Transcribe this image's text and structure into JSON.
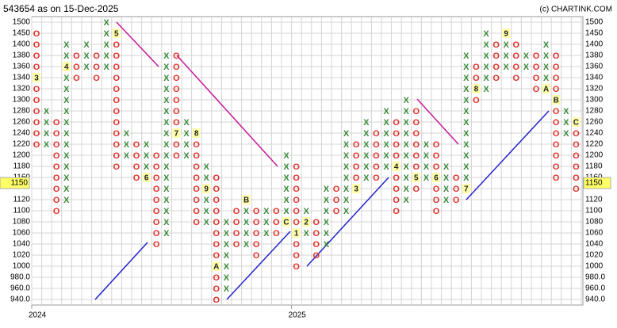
{
  "chart_data": {
    "type": "point-and-figure",
    "title": "543654 as on 15-Dec-2025",
    "credit": "(c) CHARTINK.COM",
    "last_price": {
      "value": 1150,
      "label": "1150"
    },
    "x_color": "#3a8a3a",
    "o_color": "#e0302a",
    "grid": true,
    "yticks": [
      1500,
      1450,
      1400,
      1380,
      1360,
      1340,
      1320,
      1300,
      1280,
      1260,
      1240,
      1220,
      1200,
      1180,
      1160,
      {
        "value": 1140,
        "label": null
      },
      1120,
      1100,
      1080,
      1060,
      1040,
      1020,
      1000,
      {
        "value": 980,
        "label": "980.0"
      },
      {
        "value": 960,
        "label": "960.0"
      },
      {
        "value": 940,
        "label": "940.0"
      }
    ],
    "years": [
      {
        "label": "2024",
        "column": 0
      },
      {
        "label": "2025",
        "column": 26
      }
    ],
    "columns": [
      {
        "kind": "O",
        "high": 1450,
        "low": 1220,
        "markers": [
          {
            "price": 1340,
            "label": "3"
          }
        ]
      },
      {
        "kind": "X",
        "high": 1280,
        "low": 1220
      },
      {
        "kind": "O",
        "high": 1260,
        "low": 1100
      },
      {
        "kind": "X",
        "high": 1400,
        "low": 1120,
        "markers": [
          {
            "price": 1360,
            "label": "4"
          }
        ]
      },
      {
        "kind": "O",
        "high": 1380,
        "low": 1340
      },
      {
        "kind": "X",
        "high": 1400,
        "low": 1360
      },
      {
        "kind": "O",
        "high": 1380,
        "low": 1340
      },
      {
        "kind": "X",
        "high": 1500,
        "low": 1360
      },
      {
        "kind": "O",
        "high": 1450,
        "low": 1180,
        "markers": [
          {
            "price": 1450,
            "label": "5"
          }
        ]
      },
      {
        "kind": "X",
        "high": 1240,
        "low": 1200
      },
      {
        "kind": "O",
        "high": 1220,
        "low": 1160
      },
      {
        "kind": "X",
        "high": 1220,
        "low": 1160,
        "markers": [
          {
            "price": 1160,
            "label": "6"
          }
        ]
      },
      {
        "kind": "O",
        "high": 1200,
        "low": 1040
      },
      {
        "kind": "X",
        "high": 1380,
        "low": 1060
      },
      {
        "kind": "O",
        "high": 1380,
        "low": 1200,
        "markers": [
          {
            "price": 1240,
            "label": "7"
          }
        ]
      },
      {
        "kind": "X",
        "high": 1260,
        "low": 1200
      },
      {
        "kind": "O",
        "high": 1240,
        "low": 1080,
        "markers": [
          {
            "price": 1240,
            "label": "8"
          }
        ]
      },
      {
        "kind": "X",
        "high": 1180,
        "low": 1080,
        "markers": [
          {
            "price": 1140,
            "label": "9"
          }
        ]
      },
      {
        "kind": "O",
        "high": 1160,
        "low": 940,
        "markers": [
          {
            "price": 1000,
            "label": "A"
          }
        ]
      },
      {
        "kind": "X",
        "high": 1080,
        "low": 960
      },
      {
        "kind": "O",
        "high": 1100,
        "low": 1040
      },
      {
        "kind": "X",
        "high": 1120,
        "low": 1040,
        "markers": [
          {
            "price": 1120,
            "label": "B"
          }
        ]
      },
      {
        "kind": "O",
        "high": 1100,
        "low": 1020
      },
      {
        "kind": "X",
        "high": 1100,
        "low": 1060
      },
      {
        "kind": "O",
        "high": 1100,
        "low": 1060
      },
      {
        "kind": "X",
        "high": 1200,
        "low": 1080,
        "markers": [
          {
            "price": 1080,
            "label": "C"
          }
        ]
      },
      {
        "kind": "O",
        "high": 1180,
        "low": 1000,
        "markers": [
          {
            "price": 1060,
            "label": "1"
          }
        ]
      },
      {
        "kind": "X",
        "high": 1100,
        "low": 1060,
        "markers": [
          {
            "price": 1080,
            "label": "2"
          }
        ]
      },
      {
        "kind": "O",
        "high": 1080,
        "low": 1020
      },
      {
        "kind": "X",
        "high": 1140,
        "low": 1040
      },
      {
        "kind": "O",
        "high": 1140,
        "low": 1100
      },
      {
        "kind": "X",
        "high": 1240,
        "low": 1100
      },
      {
        "kind": "O",
        "high": 1220,
        "low": 1140,
        "markers": [
          {
            "price": 1140,
            "label": "3"
          }
        ]
      },
      {
        "kind": "X",
        "high": 1260,
        "low": 1160
      },
      {
        "kind": "O",
        "high": 1240,
        "low": 1160
      },
      {
        "kind": "X",
        "high": 1280,
        "low": 1180
      },
      {
        "kind": "O",
        "high": 1260,
        "low": 1100,
        "markers": [
          {
            "price": 1180,
            "label": "4"
          }
        ]
      },
      {
        "kind": "X",
        "high": 1300,
        "low": 1120
      },
      {
        "kind": "O",
        "high": 1280,
        "low": 1140,
        "markers": [
          {
            "price": 1160,
            "label": "5"
          }
        ]
      },
      {
        "kind": "X",
        "high": 1220,
        "low": 1160
      },
      {
        "kind": "O",
        "high": 1220,
        "low": 1100,
        "markers": [
          {
            "price": 1160,
            "label": "6"
          }
        ]
      },
      {
        "kind": "X",
        "high": 1180,
        "low": 1120
      },
      {
        "kind": "O",
        "high": 1160,
        "low": 1120
      },
      {
        "kind": "X",
        "high": 1380,
        "low": 1140,
        "markers": [
          {
            "price": 1140,
            "label": "7"
          }
        ]
      },
      {
        "kind": "O",
        "high": 1360,
        "low": 1300,
        "markers": [
          {
            "price": 1320,
            "label": "8"
          }
        ]
      },
      {
        "kind": "X",
        "high": 1450,
        "low": 1320
      },
      {
        "kind": "O",
        "high": 1400,
        "low": 1340
      },
      {
        "kind": "X",
        "high": 1450,
        "low": 1360,
        "markers": [
          {
            "price": 1450,
            "label": "9"
          }
        ]
      },
      {
        "kind": "O",
        "high": 1400,
        "low": 1340
      },
      {
        "kind": "X",
        "high": 1380,
        "low": 1360
      },
      {
        "kind": "O",
        "high": 1380,
        "low": 1320
      },
      {
        "kind": "X",
        "high": 1400,
        "low": 1320,
        "markers": [
          {
            "price": 1320,
            "label": "A"
          }
        ]
      },
      {
        "kind": "O",
        "high": 1380,
        "low": 1160,
        "markers": [
          {
            "price": 1300,
            "label": "B"
          }
        ]
      },
      {
        "kind": "X",
        "high": 1280,
        "low": 1240
      },
      {
        "kind": "O",
        "high": 1260,
        "low": 1140,
        "markers": [
          {
            "price": 1260,
            "label": "C"
          }
        ]
      }
    ]
  }
}
